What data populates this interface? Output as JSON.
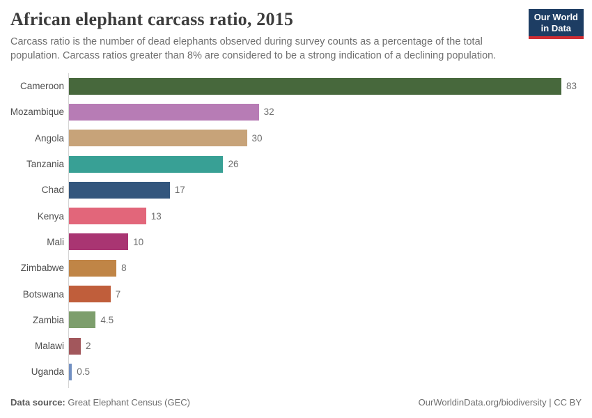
{
  "header": {
    "title": "African elephant carcass ratio, 2015",
    "subtitle": "Carcass ratio is the number of dead elephants observed during survey counts as a percentage of the total population. Carcass ratios greater than 8% are considered to be a strong indication of a declining population."
  },
  "logo": {
    "line1": "Our World",
    "line2": "in Data",
    "background_color": "#1d3d63",
    "accent_color": "#cf2d33"
  },
  "chart_data": {
    "type": "bar",
    "orientation": "horizontal",
    "title": "African elephant carcass ratio, 2015",
    "categories": [
      "Cameroon",
      "Mozambique",
      "Angola",
      "Tanzania",
      "Chad",
      "Kenya",
      "Mali",
      "Zimbabwe",
      "Botswana",
      "Zambia",
      "Malawi",
      "Uganda"
    ],
    "values": [
      83,
      32,
      30,
      26,
      17,
      13,
      10,
      8,
      7,
      4.5,
      2,
      0.5
    ],
    "value_labels": [
      "83",
      "32",
      "30",
      "26",
      "17",
      "13",
      "10",
      "8",
      "7",
      "4.5",
      "2",
      "0.5"
    ],
    "bar_colors": [
      "#47683C",
      "#B77CB5",
      "#C7A379",
      "#38A095",
      "#33567D",
      "#E2667A",
      "#A93572",
      "#C08546",
      "#C05E3B",
      "#7D9E6C",
      "#A2575C",
      "#7290C2"
    ],
    "xlim": [
      0,
      83
    ],
    "grid": false,
    "legend": "none",
    "axis_line_color": "#d4d4d4",
    "category_label_color": "#4e4e4e",
    "value_label_color": "#6e6e6e"
  },
  "footer": {
    "source_label": "Data source:",
    "source_value": "Great Elephant Census (GEC)",
    "link": "OurWorldinData.org/biodiversity | CC BY"
  }
}
